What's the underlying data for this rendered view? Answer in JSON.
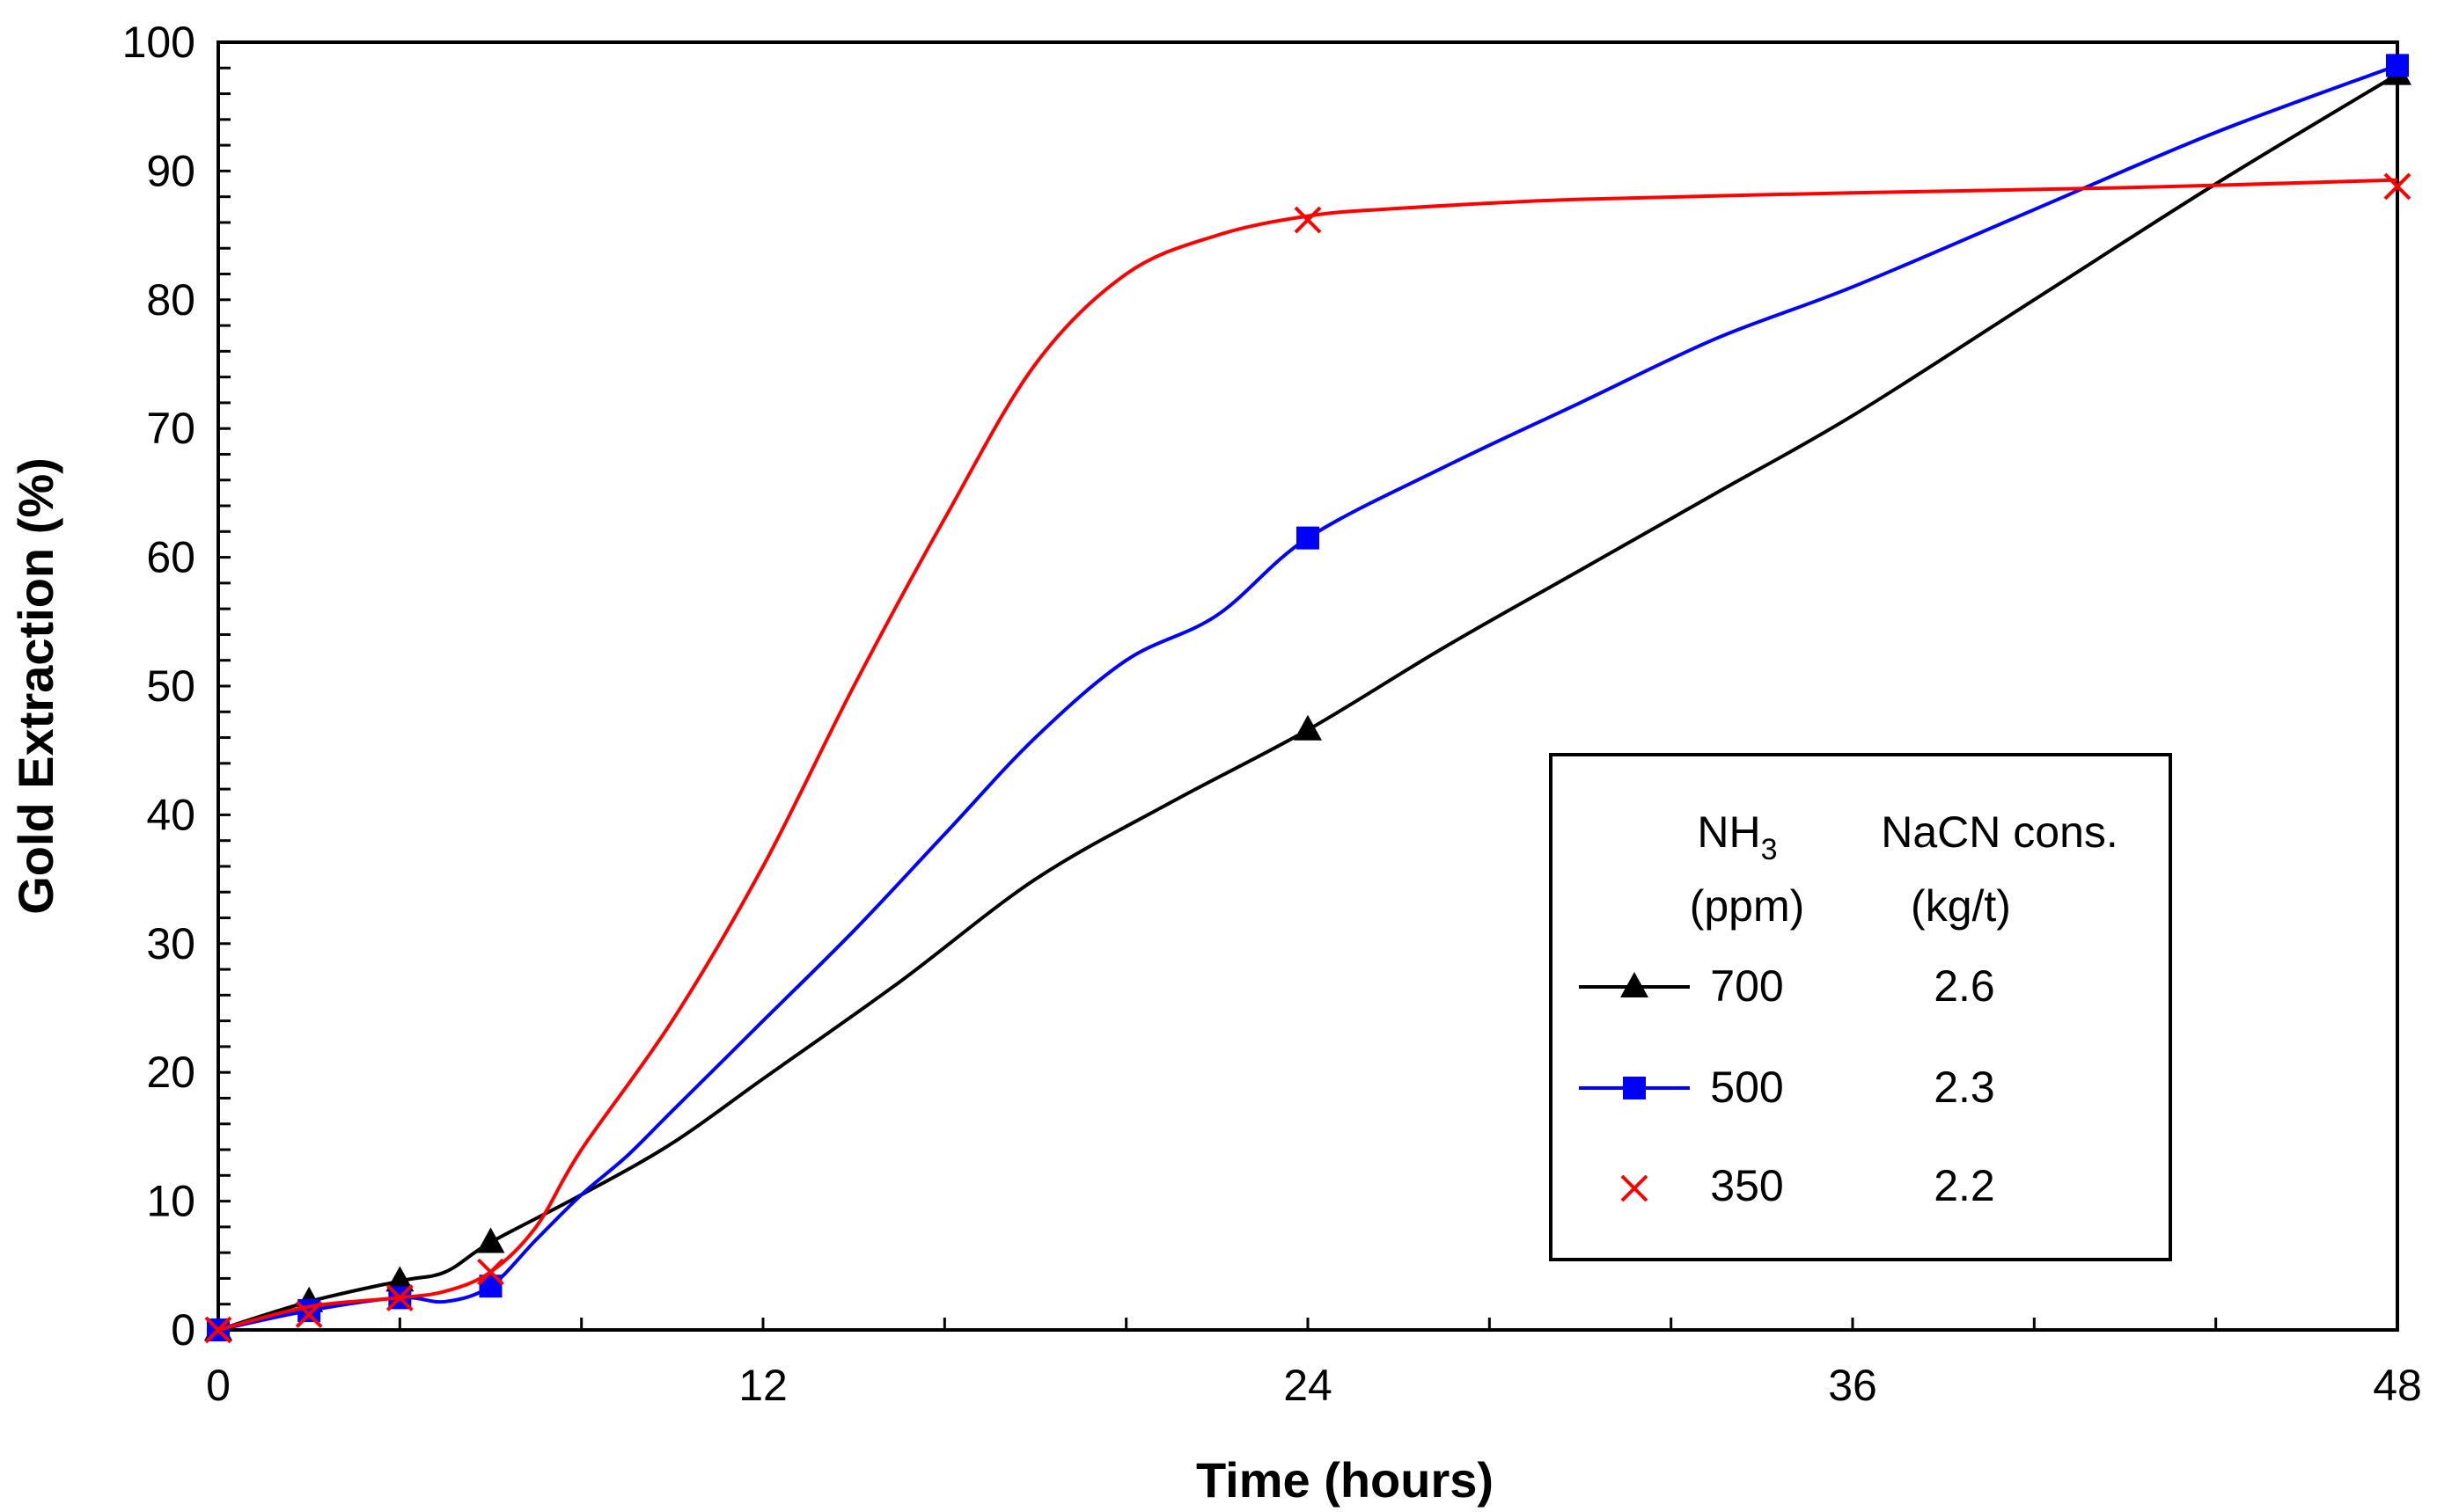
{
  "chart_data": {
    "type": "line",
    "title": "",
    "xlabel": "Time (hours)",
    "ylabel": "Gold Extraction (%)",
    "xlim": [
      0,
      48
    ],
    "ylim": [
      0,
      100
    ],
    "xticks": [
      0,
      12,
      24,
      36,
      48
    ],
    "xtick_labels": [
      "0",
      "12",
      "24",
      "36",
      "48"
    ],
    "xminor_step": 4,
    "yticks": [
      0,
      10,
      20,
      30,
      40,
      50,
      60,
      70,
      80,
      90,
      100
    ],
    "ytick_labels": [
      "0",
      "10",
      "20",
      "30",
      "40",
      "50",
      "60",
      "70",
      "80",
      "90",
      "100"
    ],
    "yminor_step": 2,
    "grid": false,
    "legend": {
      "placement": "lower-right",
      "header_col1_main": "NH",
      "header_col1_sub": "3",
      "header_col1_line2": "(ppm)",
      "header_col2_line1": "NaCN cons.",
      "header_col2_line2": "(kg/t)"
    },
    "series": [
      {
        "name": "700",
        "nacn": "2.6",
        "color": "#000000",
        "marker": "triangle",
        "x": [
          0,
          2,
          4,
          6,
          24,
          48
        ],
        "values": [
          0,
          2.2,
          3.8,
          6.8,
          46.6,
          97.5
        ],
        "curve_x": [
          0,
          2,
          4,
          5,
          6,
          8,
          10,
          12,
          15,
          18,
          21,
          24,
          27,
          30,
          33,
          36,
          40,
          44,
          48
        ],
        "curve_y": [
          0,
          2.2,
          3.8,
          4.5,
          6.8,
          10.5,
          14.5,
          19.5,
          27,
          35,
          41,
          46.6,
          53,
          59,
          65,
          71,
          80,
          89,
          97.5
        ]
      },
      {
        "name": "500",
        "nacn": "2.3",
        "color": "#0000ff",
        "marker": "square",
        "x": [
          0,
          2,
          4,
          6,
          24,
          48
        ],
        "values": [
          0,
          1.5,
          2.5,
          3.4,
          61.5,
          98.2
        ],
        "curve_x": [
          0,
          2,
          4,
          5,
          6,
          7,
          8,
          9,
          10,
          12,
          14,
          16,
          18,
          20,
          22,
          24,
          27,
          30,
          33,
          36,
          40,
          44,
          48
        ],
        "curve_y": [
          0,
          1.5,
          2.5,
          2.2,
          3.4,
          7,
          10.5,
          13.5,
          17,
          24,
          31,
          38.5,
          46,
          52,
          55.5,
          61.5,
          67,
          72,
          77,
          81,
          87,
          93,
          98.2
        ]
      },
      {
        "name": "350",
        "nacn": "2.2",
        "color": "#ff0000",
        "marker": "x",
        "x": [
          0,
          2,
          4,
          6,
          24,
          48
        ],
        "values": [
          0,
          1.2,
          2.5,
          4.5,
          86.2,
          88.8
        ],
        "curve_x": [
          0,
          2,
          4,
          5,
          6,
          7,
          8,
          10,
          12,
          14,
          16,
          18,
          20,
          22,
          24,
          26,
          30,
          36,
          42,
          48
        ],
        "curve_y": [
          0,
          1.8,
          2.5,
          3.0,
          4.5,
          8,
          14,
          24,
          36,
          50,
          63,
          75,
          82,
          85,
          86.5,
          87.1,
          87.8,
          88.3,
          88.7,
          89.3
        ]
      }
    ]
  }
}
